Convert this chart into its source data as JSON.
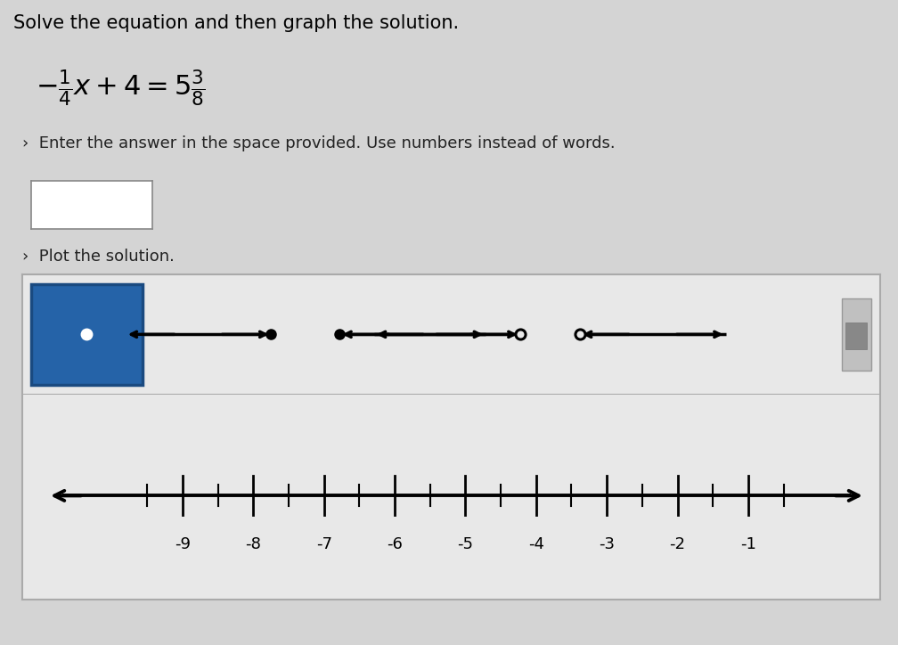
{
  "title": "Solve the equation and then graph the solution.",
  "instruction1": "›  Enter the answer in the space provided. Use numbers instead of words.",
  "instruction2": "›  Plot the solution.",
  "bg_color": "#d4d4d4",
  "panel_bg": "#e8e8e8",
  "numberline_bg": "#e8e8e8",
  "blue_box_color": "#2563a8",
  "blue_box_border": "#1a4a80",
  "toolbar_border_color": "#aaaaaa",
  "tick_positions": [
    -9,
    -8,
    -7,
    -6,
    -5,
    -4,
    -3,
    -2,
    -1
  ],
  "tick_labels": [
    "-9",
    "-8",
    "-7",
    "-6",
    "-5",
    "-4",
    "-3",
    "-2",
    "-1"
  ],
  "half_tick_positions": [
    -9.5,
    -8.5,
    -7.5,
    -6.5,
    -5.5,
    -4.5,
    -3.5,
    -2.5,
    -1.5,
    -0.5
  ],
  "title_fontsize": 15,
  "equation_fontsize": 22,
  "instruction_fontsize": 13,
  "tick_label_fontsize": 13
}
